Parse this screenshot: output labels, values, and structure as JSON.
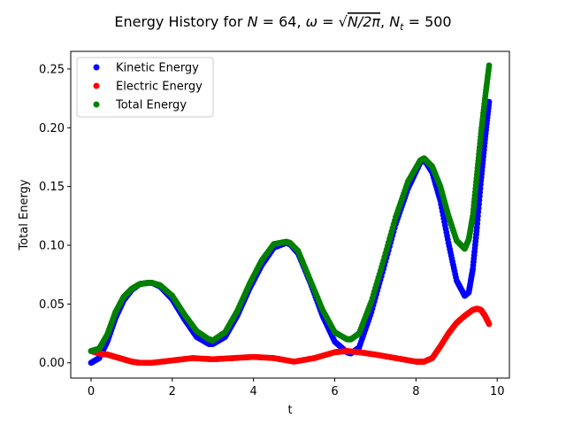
{
  "chart_data": {
    "type": "scatter",
    "title": "Energy History for N = 64, ω = √(N/2π), N_t = 500",
    "title_parts": {
      "prefix": "Energy History for ",
      "N_var": "N",
      "N_val": " = 64, ",
      "omega_var": "ω",
      "omega_eq": " = ",
      "sqrt_sym": "√",
      "sqrt_arg": "N/2π",
      "sep": ", ",
      "Nt_var": "N",
      "Nt_sub": "t",
      "Nt_val": " = 500"
    },
    "xlabel": "t",
    "ylabel": "Total Energy",
    "xlim": [
      -0.5,
      10.3
    ],
    "ylim": [
      -0.013,
      0.265
    ],
    "xticks": [
      0,
      2,
      4,
      6,
      8,
      10
    ],
    "yticks": [
      0.0,
      0.05,
      0.1,
      0.15,
      0.2,
      0.25
    ],
    "ytick_labels": [
      "0.00",
      "0.05",
      "0.10",
      "0.15",
      "0.20",
      "0.25"
    ],
    "grid": false,
    "legend_position": "upper-left",
    "series": [
      {
        "name": "Kinetic Energy",
        "color": "#0000ff",
        "x": [
          0.0,
          0.2,
          0.4,
          0.6,
          0.8,
          1.0,
          1.2,
          1.4,
          1.5,
          1.7,
          2.0,
          2.3,
          2.6,
          2.9,
          3.0,
          3.3,
          3.6,
          3.9,
          4.2,
          4.5,
          4.8,
          4.9,
          5.1,
          5.4,
          5.7,
          6.0,
          6.3,
          6.4,
          6.6,
          6.9,
          7.2,
          7.5,
          7.8,
          8.1,
          8.2,
          8.4,
          8.6,
          8.8,
          9.0,
          9.2,
          9.3,
          9.4,
          9.5,
          9.6,
          9.7,
          9.8
        ],
        "y": [
          0.0,
          0.004,
          0.018,
          0.038,
          0.053,
          0.062,
          0.067,
          0.068,
          0.068,
          0.065,
          0.054,
          0.037,
          0.022,
          0.016,
          0.016,
          0.022,
          0.04,
          0.063,
          0.083,
          0.098,
          0.102,
          0.101,
          0.093,
          0.068,
          0.04,
          0.018,
          0.009,
          0.008,
          0.013,
          0.043,
          0.08,
          0.118,
          0.148,
          0.17,
          0.173,
          0.162,
          0.138,
          0.102,
          0.07,
          0.057,
          0.06,
          0.08,
          0.115,
          0.155,
          0.19,
          0.222
        ]
      },
      {
        "name": "Electric Energy",
        "color": "#ff0000",
        "x": [
          0.0,
          0.2,
          0.4,
          0.6,
          0.8,
          1.0,
          1.2,
          1.5,
          2.0,
          2.5,
          3.0,
          3.5,
          4.0,
          4.5,
          5.0,
          5.5,
          6.0,
          6.3,
          6.6,
          7.0,
          7.5,
          8.0,
          8.2,
          8.4,
          8.6,
          8.8,
          9.0,
          9.2,
          9.4,
          9.5,
          9.6,
          9.7,
          9.8
        ],
        "y": [
          0.01,
          0.008,
          0.007,
          0.005,
          0.003,
          0.001,
          0.0,
          0.0,
          0.002,
          0.004,
          0.003,
          0.004,
          0.005,
          0.004,
          0.001,
          0.004,
          0.009,
          0.01,
          0.009,
          0.007,
          0.004,
          0.001,
          0.001,
          0.004,
          0.014,
          0.025,
          0.034,
          0.04,
          0.045,
          0.046,
          0.045,
          0.04,
          0.033
        ]
      },
      {
        "name": "Total Energy",
        "color": "#008000",
        "x": [
          0.0,
          0.2,
          0.4,
          0.6,
          0.8,
          1.0,
          1.2,
          1.4,
          1.5,
          1.7,
          2.0,
          2.3,
          2.6,
          2.9,
          3.0,
          3.3,
          3.6,
          3.9,
          4.2,
          4.5,
          4.8,
          4.9,
          5.1,
          5.4,
          5.7,
          6.0,
          6.3,
          6.4,
          6.6,
          6.9,
          7.2,
          7.5,
          7.8,
          8.1,
          8.2,
          8.4,
          8.6,
          8.8,
          9.0,
          9.2,
          9.3,
          9.4,
          9.5,
          9.6,
          9.7,
          9.8
        ],
        "y": [
          0.01,
          0.012,
          0.024,
          0.043,
          0.056,
          0.063,
          0.067,
          0.068,
          0.068,
          0.066,
          0.057,
          0.041,
          0.027,
          0.02,
          0.019,
          0.026,
          0.044,
          0.067,
          0.087,
          0.101,
          0.103,
          0.102,
          0.095,
          0.07,
          0.045,
          0.026,
          0.02,
          0.02,
          0.025,
          0.052,
          0.087,
          0.124,
          0.154,
          0.172,
          0.174,
          0.167,
          0.15,
          0.125,
          0.104,
          0.097,
          0.105,
          0.125,
          0.16,
          0.195,
          0.225,
          0.253
        ]
      }
    ]
  }
}
